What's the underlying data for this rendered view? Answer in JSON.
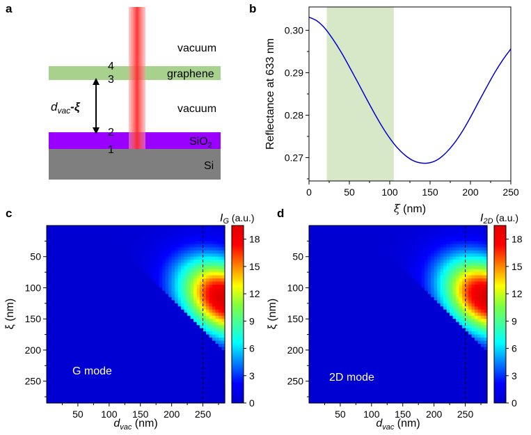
{
  "panels": {
    "a": {
      "label": "a",
      "layers": {
        "vacuum_top": "vacuum",
        "graphene": "graphene",
        "vacuum_mid": "vacuum",
        "sio2_main": "SiO",
        "sio2_sub": "2",
        "si": "Si"
      },
      "interfaces": [
        "4",
        "3",
        "2",
        "1"
      ],
      "gap_label_main": "d",
      "gap_label_sub": "vac",
      "gap_label_tail": "-ξ",
      "colors": {
        "graphene": "#a9d18e",
        "sio2": "#9900ff",
        "si": "#7f7f7f",
        "laser": "#ff3b3b"
      }
    },
    "b": {
      "label": "b",
      "xlabel_symbol": "ξ",
      "xlabel_unit": " (nm)",
      "ylabel": "Reflectance at 633 nm",
      "line_color": "#0000cc",
      "band_color": "#d7e8c8"
    },
    "c": {
      "label": "c",
      "mode_text": "G mode",
      "cbar_symbol": "I",
      "cbar_sub": "G",
      "cbar_unit": " (a.u.)",
      "xlabel_main": "d",
      "xlabel_sub": "vac",
      "xlabel_unit": " (nm)",
      "ylabel": "ξ (nm)"
    },
    "d": {
      "label": "d",
      "mode_text": "2D mode",
      "cbar_symbol": "I",
      "cbar_sub": "2D",
      "cbar_unit": " (a.u.)",
      "xlabel_main": "d",
      "xlabel_sub": "vac",
      "xlabel_unit": " (nm)",
      "ylabel": "ξ (nm)"
    }
  },
  "chart_data": [
    {
      "type": "line",
      "panel": "b",
      "xlabel": "ξ (nm)",
      "ylabel": "Reflectance at 633 nm",
      "xlim": [
        0,
        250
      ],
      "ylim": [
        0.2645,
        0.3055
      ],
      "xticks": [
        0,
        50,
        100,
        150,
        200,
        250
      ],
      "yticks": [
        0.27,
        0.28,
        0.29,
        0.3
      ],
      "ytick_labels": [
        "0.27",
        "0.28",
        "0.29",
        "0.30"
      ],
      "shaded_band": [
        22,
        105
      ],
      "series": [
        {
          "name": "Reflectance",
          "x": [
            0,
            10,
            20,
            30,
            40,
            50,
            60,
            70,
            80,
            90,
            100,
            110,
            120,
            130,
            140,
            150,
            160,
            170,
            180,
            190,
            200,
            210,
            220,
            230,
            240,
            250
          ],
          "y": [
            0.3031,
            0.3022,
            0.3004,
            0.2978,
            0.2948,
            0.2914,
            0.2879,
            0.2843,
            0.2808,
            0.2775,
            0.2746,
            0.2722,
            0.2704,
            0.2692,
            0.2687,
            0.2688,
            0.2696,
            0.2712,
            0.2734,
            0.2762,
            0.2795,
            0.2831,
            0.2866,
            0.29,
            0.293,
            0.2956
          ]
        }
      ]
    },
    {
      "type": "heatmap",
      "panel": "c",
      "title": "G mode",
      "xlabel": "d_vac (nm)",
      "ylabel": "ξ (nm)",
      "xlim": [
        0,
        285
      ],
      "ylim": [
        285,
        0
      ],
      "xticks": [
        50,
        100,
        150,
        200,
        250
      ],
      "yticks": [
        50,
        100,
        150,
        200,
        250
      ],
      "colorbar": {
        "label": "I_G (a.u.)",
        "range": [
          0,
          19.5
        ],
        "ticks": [
          0,
          3,
          6,
          9,
          12,
          15,
          18
        ]
      },
      "dashed_line_x": 250,
      "peak": {
        "d_vac": 285,
        "xi": 118,
        "value": 19.5
      },
      "masked_region": "xi > d_vac - 85"
    },
    {
      "type": "heatmap",
      "panel": "d",
      "title": "2D mode",
      "xlabel": "d_vac (nm)",
      "ylabel": "ξ (nm)",
      "xlim": [
        0,
        285
      ],
      "ylim": [
        285,
        0
      ],
      "xticks": [
        50,
        100,
        150,
        200,
        250
      ],
      "yticks": [
        50,
        100,
        150,
        200,
        250
      ],
      "colorbar": {
        "label": "I_2D (a.u.)",
        "range": [
          0,
          19.5
        ],
        "ticks": [
          0,
          3,
          6,
          9,
          12,
          15,
          18
        ]
      },
      "dashed_line_x": 250,
      "peak": {
        "d_vac": 285,
        "xi": 116,
        "value": 19.5
      },
      "masked_region": "xi > d_vac - 85"
    }
  ]
}
